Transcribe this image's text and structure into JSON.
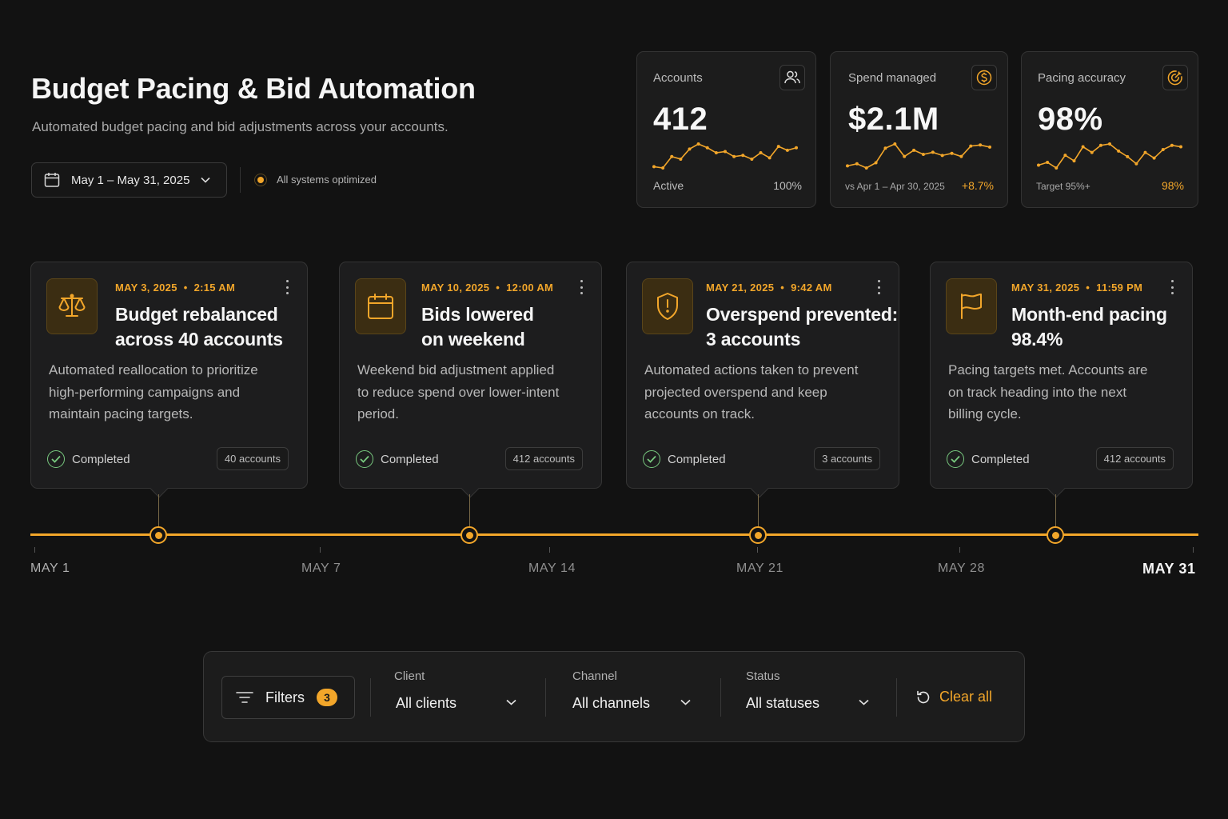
{
  "header": {
    "title": "Budget Pacing & Bid Automation",
    "subtitle": "Automated budget pacing and bid adjustments across your accounts.",
    "date_range": "May 1 – May 31, 2025",
    "system_status": "All systems optimized"
  },
  "kpis": [
    {
      "label": "Accounts",
      "value": "412",
      "footer_left": "Active",
      "footer_right": "100%",
      "icon": "users-icon",
      "trend": [
        30,
        29,
        38,
        36,
        44,
        48,
        45,
        41,
        42,
        38,
        39,
        36,
        41,
        37,
        46,
        43,
        45
      ]
    },
    {
      "label": "Spend managed",
      "value": "$2.1M",
      "footer_left": "vs Apr 1 – Apr 30, 2025",
      "footer_right": "+8.7%",
      "icon": "dollar-icon",
      "trend": [
        31,
        33,
        29,
        34,
        48,
        52,
        40,
        46,
        42,
        44,
        41,
        43,
        40,
        50,
        51,
        49
      ]
    },
    {
      "label": "Pacing accuracy",
      "value": "98%",
      "footer_left": "Target 95%+",
      "footer_right": "98%",
      "icon": "target-icon",
      "trend": [
        31,
        33,
        29,
        38,
        34,
        44,
        40,
        45,
        46,
        41,
        37,
        32,
        40,
        36,
        42,
        45,
        44
      ]
    }
  ],
  "events": [
    {
      "date": "MAY 3, 2025",
      "time": "2:15 AM",
      "title_line1": "Budget rebalanced",
      "title_line2": "across 40 accounts",
      "desc_line1": "Automated reallocation to prioritize",
      "desc_line2": "high-performing campaigns and",
      "desc_line3": "maintain pacing targets.",
      "status": "Completed",
      "badge": "40 accounts",
      "icon": "scale-icon"
    },
    {
      "date": "MAY 10, 2025",
      "time": "12:00 AM",
      "title_line1": "Bids lowered",
      "title_line2": "on weekend",
      "desc_line1": "Weekend bid adjustment applied",
      "desc_line2": "to reduce spend over lower-intent",
      "desc_line3": "period.",
      "status": "Completed",
      "badge": "412 accounts",
      "icon": "calendar-icon"
    },
    {
      "date": "MAY 21, 2025",
      "time": "9:42 AM",
      "title_line1": "Overspend prevented:",
      "title_line2": "3 accounts",
      "desc_line1": "Automated actions taken to prevent",
      "desc_line2": "projected overspend and keep",
      "desc_line3": "accounts on track.",
      "status": "Completed",
      "badge": "3 accounts",
      "icon": "shield-alert-icon"
    },
    {
      "date": "MAY 31, 2025",
      "time": "11:59 PM",
      "title_line1": "Month-end pacing",
      "title_line2": "98.4%",
      "desc_line1": "Pacing targets met. Accounts are",
      "desc_line2": "on track heading into the next",
      "desc_line3": "billing cycle.",
      "status": "Completed",
      "badge": "412 accounts",
      "icon": "flag-icon"
    }
  ],
  "timeline": {
    "labels": [
      "MAY 1",
      "MAY 7",
      "MAY 14",
      "MAY 21",
      "MAY 28",
      "MAY 31"
    ]
  },
  "filters": {
    "button_label": "Filters",
    "active_count": "3",
    "client": {
      "label": "Client",
      "value": "All clients"
    },
    "channel": {
      "label": "Channel",
      "value": "All channels"
    },
    "status": {
      "label": "Status",
      "value": "All statuses"
    },
    "clear_label": "Clear all"
  },
  "colors": {
    "accent": "#f2a62a",
    "background": "#121212",
    "card": "#1d1d1e",
    "success": "#78c97f"
  }
}
